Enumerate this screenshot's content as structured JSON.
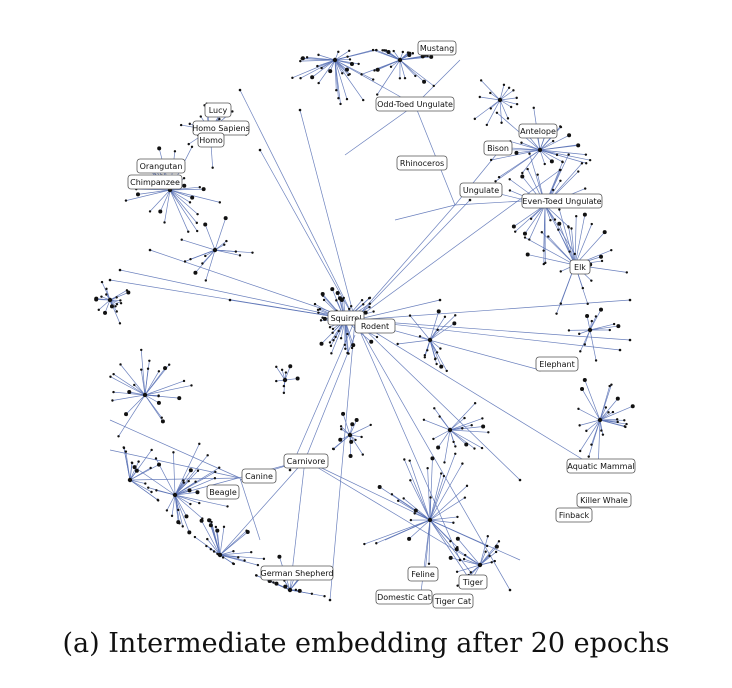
{
  "caption": "(a) Intermediate embedding after 20 epochs",
  "colors": {
    "edge": "#5b73b6",
    "node": "#111111",
    "label_border": "#555555"
  },
  "labels": [
    "Mustang",
    "Odd-Toed Ungulate",
    "Lucy",
    "Homo Sapiens",
    "Homo",
    "Orangutan",
    "Chimpanzee",
    "Rhinoceros",
    "Bison",
    "Antelope",
    "Ungulate",
    "Even-Toed Ungulate",
    "Elk",
    "Squirrel",
    "Rodent",
    "Elephant",
    "Aquatic Mammal",
    "Killer Whale",
    "Finback",
    "Carnivore",
    "Canine",
    "Beagle",
    "German Shepherd",
    "Feline",
    "Tiger",
    "Domestic Cat",
    "Tiger Cat"
  ]
}
